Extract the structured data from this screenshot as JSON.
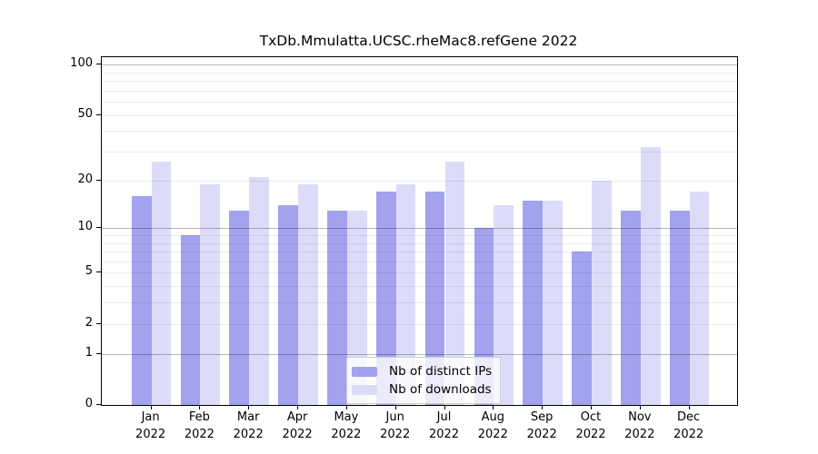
{
  "chart_data": {
    "type": "bar",
    "title": "TxDb.Mmulatta.UCSC.rheMac8.refGene 2022",
    "categories": [
      "Jan",
      "Feb",
      "Mar",
      "Apr",
      "May",
      "Jun",
      "Jul",
      "Aug",
      "Sep",
      "Oct",
      "Nov",
      "Dec"
    ],
    "year_label": "2022",
    "series": [
      {
        "name": "Nb of distinct IPs",
        "color": "#a2a2ef",
        "values": [
          16,
          9,
          13,
          14,
          13,
          17,
          17,
          10,
          15,
          7,
          13,
          13
        ]
      },
      {
        "name": "Nb of downloads",
        "color": "#dcdcf9",
        "values": [
          26,
          19,
          21,
          19,
          13,
          19,
          26,
          14,
          15,
          20,
          32,
          17
        ]
      }
    ],
    "xlabel": "",
    "ylabel": "",
    "y_scale": "log10(value+1)",
    "ylim": [
      0,
      110
    ],
    "y_tick_values": [
      0,
      1,
      2,
      5,
      10,
      20,
      50,
      100
    ],
    "y_tick_labels": [
      "0",
      "1",
      "2",
      "5",
      "10",
      "20",
      "50",
      "100"
    ],
    "y_minor_gridlines": [
      2,
      3,
      4,
      5,
      6,
      7,
      8,
      9,
      20,
      30,
      40,
      50,
      60,
      70,
      80,
      90
    ],
    "y_major_gridlines": [
      1,
      10,
      100
    ],
    "grid": true,
    "legend_position": "bottom-center",
    "colors": {
      "frame": "#000000",
      "text": "#000000",
      "grid_minor": "#ededed",
      "grid_major": "#b3b3b3",
      "legend_border": "#cfcfcf",
      "legend_bg": "rgba(255,255,255,0.78)"
    }
  }
}
